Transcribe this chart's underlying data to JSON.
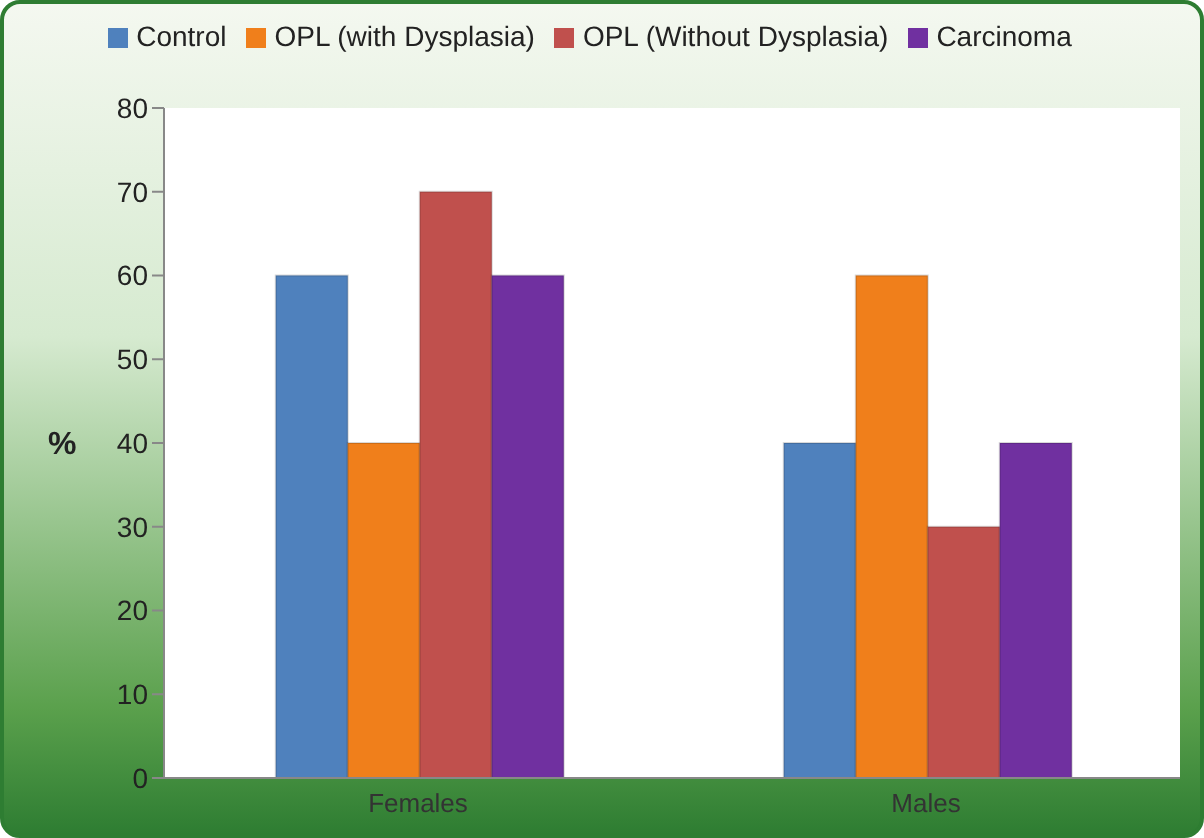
{
  "chart_data": {
    "type": "bar",
    "ylabel": "%",
    "categories": [
      "Females",
      "Males"
    ],
    "series": [
      {
        "name": "Control",
        "color": "#4f81bd",
        "values": [
          60,
          40
        ]
      },
      {
        "name": "OPL (with Dysplasia)",
        "color": "#f07f1b",
        "values": [
          40,
          60
        ]
      },
      {
        "name": "OPL (Without Dysplasia)",
        "color": "#c0504d",
        "values": [
          70,
          30
        ]
      },
      {
        "name": "Carcinoma",
        "color": "#7030a0",
        "values": [
          60,
          40
        ]
      }
    ],
    "ylim": [
      0,
      80
    ],
    "yticks": [
      0,
      10,
      20,
      30,
      40,
      50,
      60,
      70,
      80
    ],
    "grid": false,
    "legend": "top"
  }
}
